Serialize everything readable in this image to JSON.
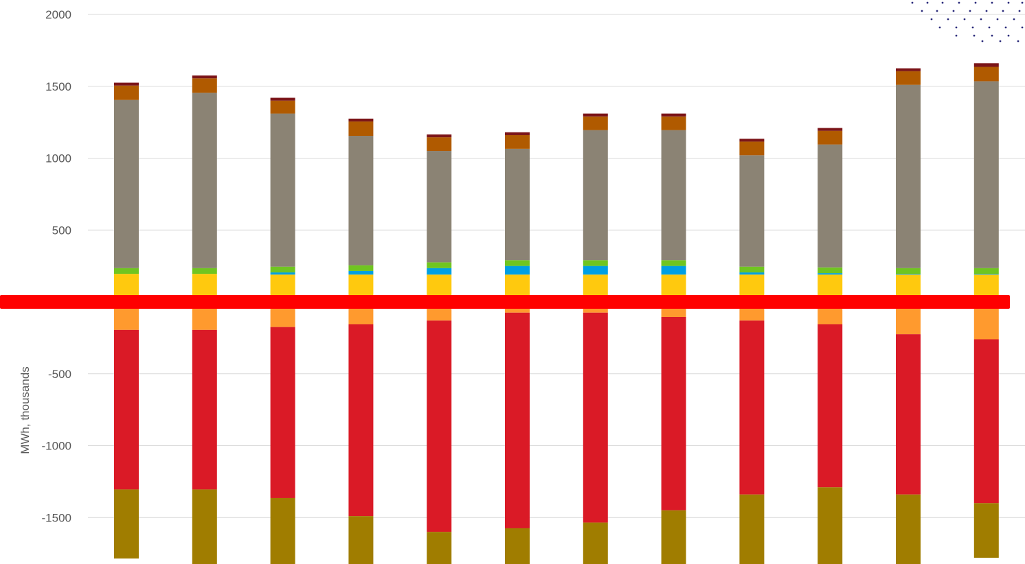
{
  "chart_data": {
    "type": "bar",
    "stacked": true,
    "title": "",
    "xlabel": "",
    "ylabel": "MWh, thousands",
    "ylim": [
      -1800,
      2000
    ],
    "yticks": [
      2000,
      1500,
      1000,
      500,
      -500,
      -1000,
      -1500
    ],
    "grid": true,
    "categories": [
      "",
      "",
      "",
      "",
      "",
      "",
      "",
      "",
      "",
      "",
      "",
      ""
    ],
    "positive_series": [
      {
        "color": "#FFC90E",
        "values": [
          195,
          195,
          190,
          190,
          190,
          190,
          190,
          190,
          190,
          190,
          190,
          190
        ]
      },
      {
        "color": "#009FE3",
        "values": [
          0,
          0,
          15,
          25,
          45,
          60,
          60,
          60,
          15,
          10,
          5,
          5
        ]
      },
      {
        "color": "#70C520",
        "values": [
          40,
          40,
          40,
          40,
          40,
          40,
          40,
          40,
          40,
          40,
          40,
          40
        ]
      },
      {
        "color": "#8B8374",
        "values": [
          1170,
          1220,
          1065,
          900,
          775,
          775,
          905,
          905,
          775,
          855,
          1275,
          1300
        ]
      },
      {
        "color": "#B05A00",
        "values": [
          100,
          100,
          90,
          100,
          95,
          95,
          95,
          95,
          95,
          95,
          95,
          100
        ]
      },
      {
        "color": "#7B1418",
        "values": [
          20,
          20,
          20,
          20,
          20,
          20,
          20,
          20,
          20,
          20,
          20,
          25
        ]
      }
    ],
    "negative_series": [
      {
        "color": "#FF9A2E",
        "values": [
          -195,
          -195,
          -175,
          -155,
          -130,
          -75,
          -75,
          -105,
          -130,
          -155,
          -225,
          -260
        ]
      },
      {
        "color": "#DA1A26",
        "values": [
          -1110,
          -1110,
          -1190,
          -1335,
          -1470,
          -1500,
          -1460,
          -1345,
          -1210,
          -1135,
          -1115,
          -1140
        ]
      },
      {
        "color": "#A07D00",
        "values": [
          -480,
          -520,
          -480,
          -400,
          -330,
          -370,
          -400,
          -480,
          -560,
          -620,
          -650,
          -380
        ]
      }
    ],
    "annotations": [
      {
        "type": "horizontal-marker",
        "color": "#FF0000"
      }
    ]
  }
}
